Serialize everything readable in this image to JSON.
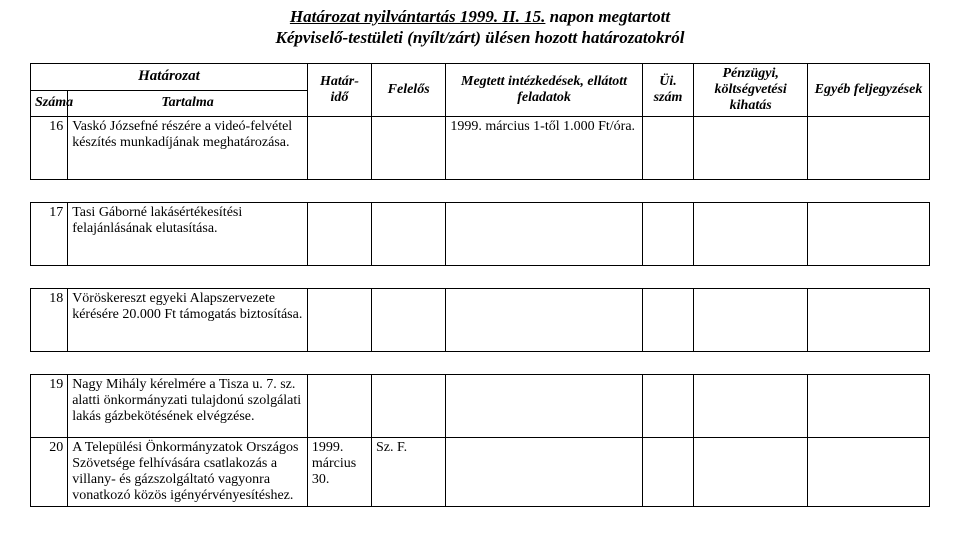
{
  "title": {
    "line1": "Határozat nyilvántartás 1999. II. 15.",
    "line2": "napon megtartott",
    "line3": "Képviselő-testületi (nyílt/zárt) ülésen hozott határozatokról"
  },
  "headers": {
    "hatarozat": "Határozat",
    "szama": "Száma",
    "tartalma": "Tartalma",
    "hatarido": "Határ-idő",
    "felelos": "Felelős",
    "megtett": "Megtett intézkedések, ellátott feladatok",
    "uiszam": "Üi. szám",
    "penzugyi": "Pénzügyi, költségvetési kihatás",
    "egyeb": "Egyéb feljegyzések"
  },
  "rows": [
    {
      "num": "16",
      "tartalma": "Vaskó Józsefné részére a videó-felvétel készítés munkadíjának meghatározása.",
      "hatarido": "",
      "felelos": "",
      "megtett": "1999. március 1-től 1.000 Ft/óra.",
      "uiszam": "",
      "penzugyi": "",
      "egyeb": ""
    },
    {
      "num": "17",
      "tartalma": "Tasi Gáborné lakásértékesítési felajánlásának elutasítása.",
      "hatarido": "",
      "felelos": "",
      "megtett": "",
      "uiszam": "",
      "penzugyi": "",
      "egyeb": ""
    },
    {
      "num": "18",
      "tartalma": "Vöröskereszt egyeki Alapszervezete kérésére 20.000 Ft támogatás biztosítása.",
      "hatarido": "",
      "felelos": "",
      "megtett": "",
      "uiszam": "",
      "penzugyi": "",
      "egyeb": ""
    },
    {
      "num": "19",
      "tartalma": "Nagy Mihály kérelmére a Tisza u. 7. sz. alatti önkormányzati tulajdonú szolgálati lakás gázbekötésének elvégzése.",
      "hatarido": "",
      "felelos": "",
      "megtett": "",
      "uiszam": "",
      "penzugyi": "",
      "egyeb": ""
    },
    {
      "num": "20",
      "tartalma": "A Települési Önkormányzatok Országos Szövetsége felhívására csatlakozás a villany- és gázszolgáltató vagyonra vonatkozó közös igényérvényesítéshez.",
      "hatarido": "1999. március 30.",
      "felelos": "Sz. F.",
      "megtett": "",
      "uiszam": "",
      "penzugyi": "",
      "egyeb": ""
    }
  ]
}
